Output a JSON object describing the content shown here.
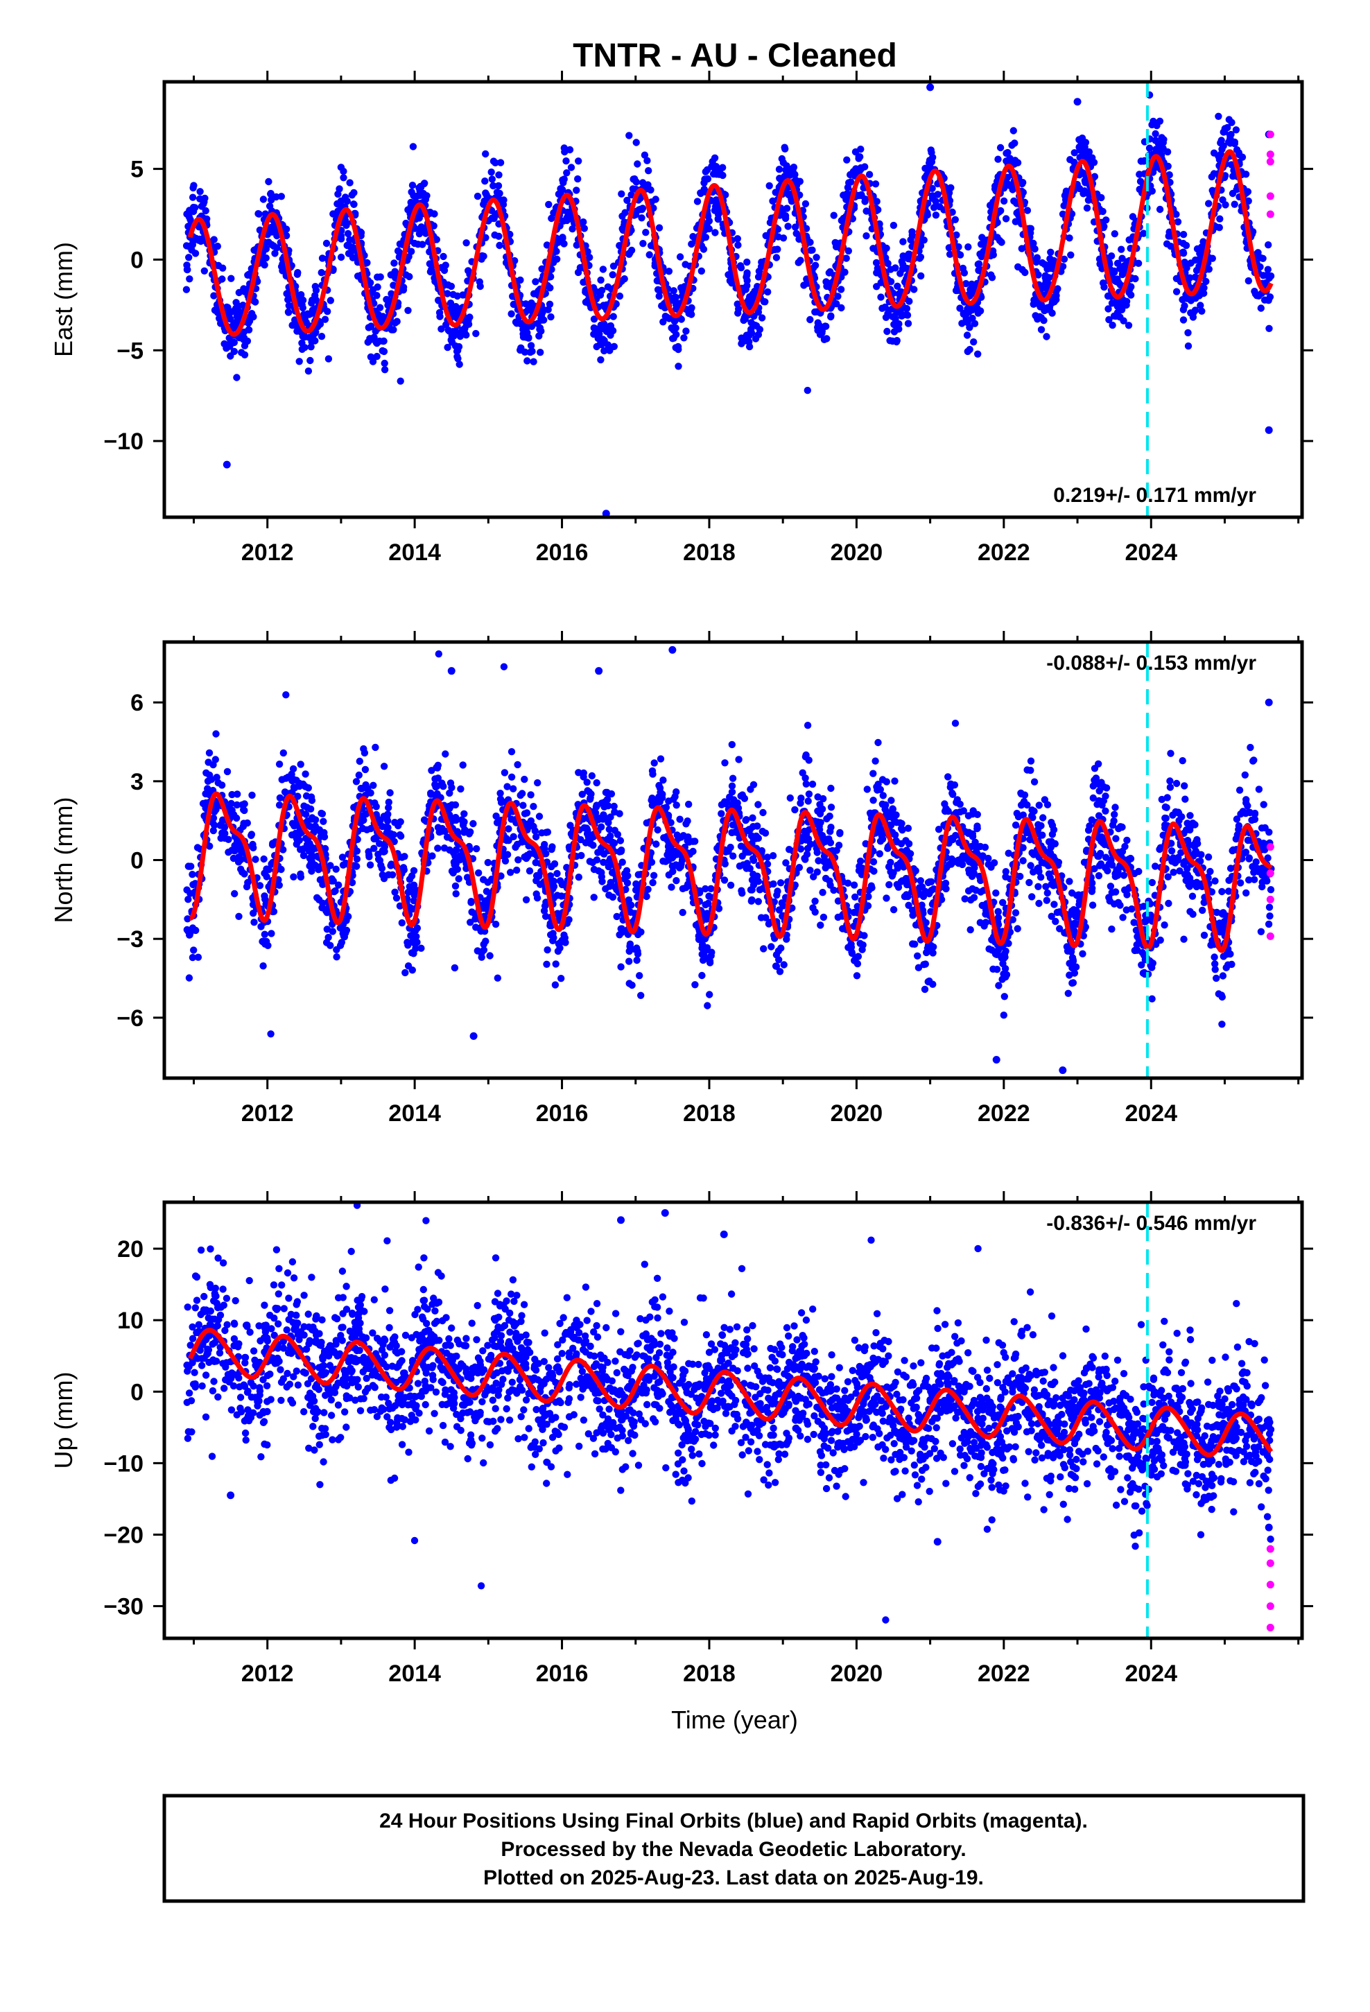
{
  "title": "TNTR  - AU - Cleaned",
  "colors": {
    "final_orbits": "#0000ff",
    "rapid_orbits": "#ff00ff",
    "model_fit": "#ff0000",
    "marker_line": "#00e5ee",
    "frame": "#000000"
  },
  "chart_data": [
    {
      "type": "scatter",
      "panel": "east",
      "ylabel": "East (mm)",
      "xlabel": "",
      "xlim": [
        2010.6,
        2026.05
      ],
      "ylim": [
        -14.2,
        9.8
      ],
      "x_ticks": [
        2012,
        2014,
        2016,
        2018,
        2020,
        2022,
        2024
      ],
      "y_ticks": [
        5,
        0,
        -5,
        -10
      ],
      "rate_text": "0.219+/- 0.171 mm/yr",
      "rate_position": "bottom-right",
      "marker_line_x": 2023.95,
      "data_start": 2010.9,
      "data_end": 2025.63,
      "rapid_start": 2025.55,
      "model": {
        "offset": -1.2,
        "trend_per_year": 0.219,
        "annual_amp_start": 3.2,
        "annual_amp_end": 3.9,
        "annual_phase": 1.2,
        "semiannual_amp": 0.2,
        "semiannual_phase": 0.3,
        "scatter_sd": 1.1
      },
      "series": [
        {
          "name": "Final Orbits",
          "kind": "points",
          "sample_points": [
            [
              2011.5,
              -4.6
            ],
            [
              2012.0,
              1.4
            ],
            [
              2013.0,
              1.6
            ],
            [
              2016.6,
              -14.0
            ],
            [
              2021.0,
              9.5
            ],
            [
              2023.0,
              8.7
            ],
            [
              2025.6,
              6.9
            ],
            [
              2025.6,
              -9.4
            ],
            [
              2011.45,
              -11.3
            ]
          ]
        },
        {
          "name": "Rapid Orbits",
          "kind": "points",
          "sample_points": [
            [
              2025.62,
              6.9
            ],
            [
              2025.62,
              5.8
            ],
            [
              2025.62,
              5.4
            ],
            [
              2025.62,
              3.5
            ],
            [
              2025.62,
              2.5
            ]
          ]
        },
        {
          "name": "Model",
          "kind": "line",
          "key_points": [
            [
              2011.0,
              1.0
            ],
            [
              2011.55,
              -4.6
            ],
            [
              2012.0,
              1.3
            ],
            [
              2012.55,
              -4.3
            ],
            [
              2013.0,
              1.6
            ],
            [
              2014.0,
              1.9
            ],
            [
              2016.0,
              2.3
            ],
            [
              2018.0,
              2.8
            ],
            [
              2020.0,
              3.2
            ],
            [
              2022.0,
              3.5
            ],
            [
              2024.0,
              3.9
            ],
            [
              2025.0,
              4.2
            ],
            [
              2025.62,
              -0.2
            ]
          ]
        }
      ]
    },
    {
      "type": "scatter",
      "panel": "north",
      "ylabel": "North (mm)",
      "xlabel": "",
      "xlim": [
        2010.6,
        2026.05
      ],
      "ylim": [
        -8.3,
        8.3
      ],
      "x_ticks": [
        2012,
        2014,
        2016,
        2018,
        2020,
        2022,
        2024
      ],
      "y_ticks": [
        6,
        3,
        0,
        -3,
        -6
      ],
      "rate_text": "-0.088+/- 0.153 mm/yr",
      "rate_position": "top-right",
      "marker_line_x": 2023.95,
      "data_start": 2010.9,
      "data_end": 2025.63,
      "rapid_start": 2025.55,
      "model": {
        "offset": 0.45,
        "trend_per_year": -0.088,
        "annual_amp_start": 2.0,
        "annual_amp_end": 2.0,
        "annual_phase": -1.0,
        "semiannual_amp": 0.8,
        "semiannual_phase": -1.4,
        "scatter_sd": 1.0
      },
      "series": [
        {
          "name": "Final Orbits",
          "kind": "points",
          "sample_points": [
            [
              2017.5,
              8.0
            ],
            [
              2014.5,
              7.2
            ],
            [
              2016.5,
              7.2
            ],
            [
              2022.8,
              -8.0
            ],
            [
              2021.9,
              -7.6
            ],
            [
              2014.8,
              -6.7
            ],
            [
              2025.6,
              6.0
            ]
          ]
        },
        {
          "name": "Rapid Orbits",
          "kind": "points",
          "sample_points": [
            [
              2025.62,
              0.5
            ],
            [
              2025.62,
              -0.5
            ],
            [
              2025.62,
              -1.5
            ],
            [
              2025.62,
              -2.9
            ]
          ]
        },
        {
          "name": "Model",
          "kind": "line",
          "key_points": [
            [
              2011.0,
              -0.9
            ],
            [
              2011.5,
              3.7
            ],
            [
              2012.5,
              3.6
            ],
            [
              2013.5,
              3.5
            ],
            [
              2014.5,
              3.4
            ],
            [
              2016.5,
              3.2
            ],
            [
              2018.5,
              3.1
            ],
            [
              2020.5,
              2.9
            ],
            [
              2022.5,
              2.7
            ],
            [
              2024.0,
              -2.5
            ],
            [
              2024.5,
              1.7
            ],
            [
              2024.8,
              -3.0
            ],
            [
              2025.5,
              1.6
            ]
          ]
        }
      ]
    },
    {
      "type": "scatter",
      "panel": "up",
      "ylabel": "Up (mm)",
      "xlabel": "Time (year)",
      "xlim": [
        2010.6,
        2026.05
      ],
      "ylim": [
        -34.5,
        26.5
      ],
      "x_ticks": [
        2012,
        2014,
        2016,
        2018,
        2020,
        2022,
        2024
      ],
      "y_ticks": [
        20,
        10,
        0,
        -10,
        -20,
        -30
      ],
      "rate_text": "-0.836+/- 0.546 mm/yr",
      "rate_position": "top-right",
      "marker_line_x": 2023.95,
      "data_start": 2010.9,
      "data_end": 2025.63,
      "rapid_start": 2025.55,
      "model": {
        "offset": 5.8,
        "trend_per_year": -0.836,
        "annual_amp_start": 3.0,
        "annual_amp_end": 3.0,
        "annual_phase": 0.0,
        "semiannual_amp": 0.3,
        "semiannual_phase": 0.0,
        "scatter_sd": 4.8
      },
      "series": [
        {
          "name": "Final Orbits",
          "kind": "points",
          "sample_points": [
            [
              2017.4,
              25.0
            ],
            [
              2016.8,
              24.0
            ],
            [
              2018.2,
              22.0
            ],
            [
              2021.1,
              -21.0
            ],
            [
              2011.5,
              -14.5
            ],
            [
              2025.6,
              -19.0
            ]
          ]
        },
        {
          "name": "Rapid Orbits",
          "kind": "points",
          "sample_points": [
            [
              2025.62,
              -22.0
            ],
            [
              2025.62,
              -24.0
            ],
            [
              2025.62,
              -27.0
            ],
            [
              2025.62,
              -30.0
            ],
            [
              2025.62,
              -33.0
            ]
          ]
        },
        {
          "name": "Model",
          "kind": "line",
          "key_points": [
            [
              2011.0,
              7.5
            ],
            [
              2011.3,
              9.3
            ],
            [
              2012.0,
              8.6
            ],
            [
              2014.0,
              6.7
            ],
            [
              2016.0,
              5.0
            ],
            [
              2018.0,
              3.5
            ],
            [
              2020.0,
              1.8
            ],
            [
              2022.0,
              0.0
            ],
            [
              2024.0,
              -2.8
            ],
            [
              2025.0,
              -4.0
            ],
            [
              2025.62,
              -10.7
            ]
          ]
        }
      ]
    }
  ],
  "footer": {
    "line1": "24 Hour Positions Using Final Orbits (blue) and Rapid Orbits (magenta).",
    "line2": "Processed by the Nevada Geodetic Laboratory.",
    "line3": "Plotted on 2025-Aug-23. Last data on 2025-Aug-19."
  }
}
